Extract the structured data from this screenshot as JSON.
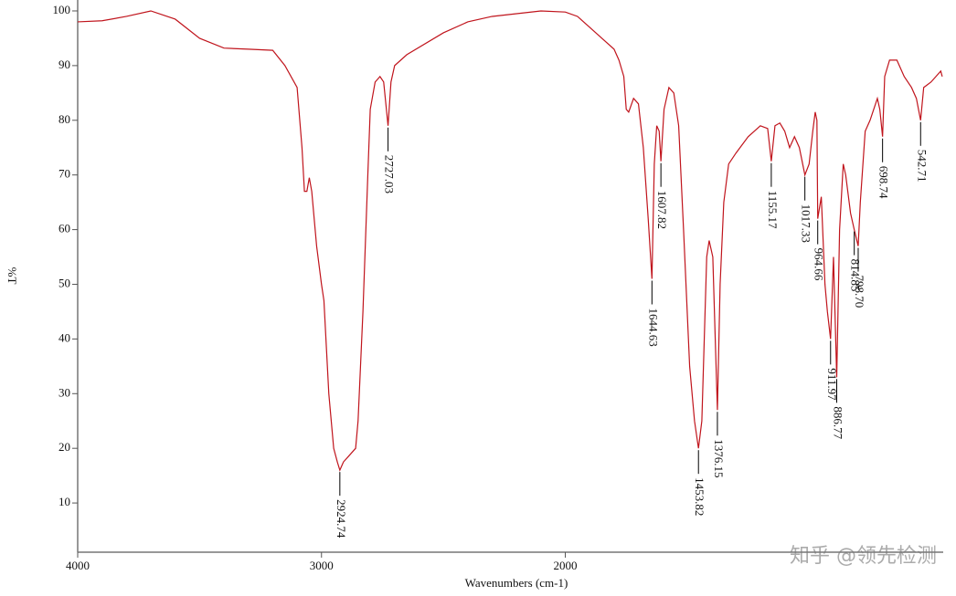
{
  "chart_data": {
    "type": "line",
    "x_label": "Wavenumbers (cm-1)",
    "y_label": "%T",
    "color": "#c0141c",
    "xlim": [
      4000,
      450
    ],
    "ylim": [
      1,
      102
    ],
    "xticks": [
      4000,
      3000,
      2000
    ],
    "yticks": [
      10,
      20,
      30,
      40,
      50,
      60,
      70,
      80,
      90,
      100
    ],
    "x": [
      4000,
      3900,
      3800,
      3700,
      3600,
      3500,
      3400,
      3300,
      3200,
      3150,
      3100,
      3080,
      3070,
      3060,
      3050,
      3040,
      3020,
      3000,
      2990,
      2970,
      2950,
      2935,
      2924.74,
      2910,
      2880,
      2860,
      2850,
      2830,
      2810,
      2800,
      2780,
      2760,
      2745,
      2727.03,
      2715,
      2700,
      2650,
      2500,
      2400,
      2300,
      2200,
      2100,
      2000,
      1950,
      1900,
      1850,
      1800,
      1780,
      1760,
      1750,
      1740,
      1720,
      1700,
      1680,
      1660,
      1644.63,
      1635,
      1625,
      1615,
      1607.82,
      1595,
      1575,
      1555,
      1535,
      1515,
      1490,
      1470,
      1453.82,
      1440,
      1430,
      1420,
      1410,
      1395,
      1385,
      1376.15,
      1365,
      1350,
      1330,
      1300,
      1250,
      1200,
      1170,
      1155.17,
      1140,
      1120,
      1100,
      1080,
      1060,
      1040,
      1017.33,
      1000,
      985,
      975,
      968,
      964.66,
      950,
      935,
      925,
      911.97,
      900,
      886.77,
      875,
      860,
      850,
      830,
      814.85,
      798.7,
      790,
      770,
      750,
      720,
      710,
      698.74,
      690,
      670,
      640,
      610,
      580,
      560,
      542.71,
      530,
      500,
      480,
      460,
      454
    ],
    "values": [
      98,
      98.2,
      99,
      100,
      98.5,
      95,
      93.2,
      93,
      92.8,
      90,
      86,
      75,
      67,
      67,
      69.5,
      67,
      57,
      50,
      47,
      30,
      20,
      17.5,
      16,
      17.5,
      19,
      20,
      25,
      45,
      70,
      82,
      87,
      88,
      87,
      79,
      87,
      90,
      92,
      96,
      98,
      99,
      99.5,
      100,
      99.8,
      99,
      97,
      95,
      93,
      91,
      88,
      82,
      81.5,
      84,
      83,
      75,
      62,
      51,
      72,
      79,
      78,
      72.5,
      82,
      86,
      85,
      79,
      60,
      35,
      25,
      20,
      25,
      40,
      55,
      58,
      55,
      40,
      27,
      50,
      65,
      72,
      74,
      77,
      79,
      78.5,
      72.5,
      79,
      79.5,
      78,
      75,
      77,
      75,
      70,
      72,
      78,
      81.5,
      80,
      62,
      66,
      50,
      45,
      40,
      55,
      33,
      60,
      72,
      70,
      63,
      60,
      57,
      65,
      78,
      80,
      84,
      82,
      77,
      88,
      91,
      91,
      88,
      86,
      84,
      80,
      86,
      87,
      88,
      89,
      88
    ],
    "annotations": [
      {
        "label": "2924.74",
        "x": 2924.74,
        "y": 16
      },
      {
        "label": "2727.03",
        "x": 2727.03,
        "y": 79
      },
      {
        "label": "1644.63",
        "x": 1644.63,
        "y": 51
      },
      {
        "label": "1607.82",
        "x": 1607.82,
        "y": 72.5
      },
      {
        "label": "1453.82",
        "x": 1453.82,
        "y": 20
      },
      {
        "label": "1376.15",
        "x": 1376.15,
        "y": 27
      },
      {
        "label": "1155.17",
        "x": 1155.17,
        "y": 72.5
      },
      {
        "label": "1017.33",
        "x": 1017.33,
        "y": 70
      },
      {
        "label": "964.66",
        "x": 964.66,
        "y": 62
      },
      {
        "label": "911.97",
        "x": 911.97,
        "y": 40
      },
      {
        "label": "886.77",
        "x": 886.77,
        "y": 33
      },
      {
        "label": "814.85",
        "x": 814.85,
        "y": 60
      },
      {
        "label": "798.70",
        "x": 798.7,
        "y": 57
      },
      {
        "label": "698.74",
        "x": 698.74,
        "y": 77
      },
      {
        "label": "542.71",
        "x": 542.71,
        "y": 80
      }
    ],
    "watermark": "知乎 @领先检测"
  }
}
